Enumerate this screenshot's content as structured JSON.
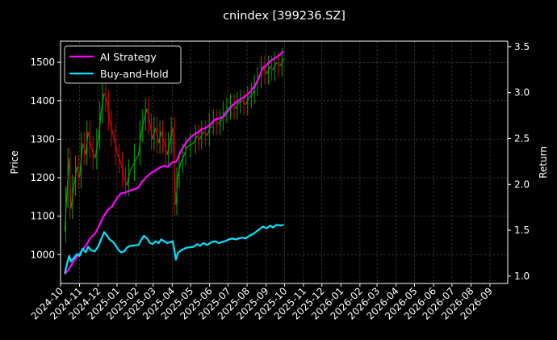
{
  "chart_data": {
    "type": "line",
    "title": "cnindex [399236.SZ]",
    "ylabel_left": "Price",
    "ylabel_right": "Return",
    "x_ticks": [
      "2024-10",
      "2024-11",
      "2024-12",
      "2025-01",
      "2025-02",
      "2025-03",
      "2025-04",
      "2025-05",
      "2025-06",
      "2025-07",
      "2025-08",
      "2025-09",
      "2025-10",
      "2025-11",
      "2025-12",
      "2026-01",
      "2026-02",
      "2026-03",
      "2026-04",
      "2026-05",
      "2026-06",
      "2026-07",
      "2026-08",
      "2026-09"
    ],
    "xlim": [
      "2024-10-01",
      "2026-09-30"
    ],
    "ylim_left": [
      925,
      1555
    ],
    "ylim_right": [
      0.92,
      3.56
    ],
    "y_ticks_left": [
      1000,
      1100,
      1200,
      1300,
      1400,
      1500
    ],
    "y_ticks_right": [
      1.0,
      1.5,
      2.0,
      2.5,
      3.0,
      3.5
    ],
    "grid": true,
    "legend_position": "top-left",
    "colors": {
      "up": "#00a800",
      "down": "#e00000",
      "ai_strategy": "#ff00ff",
      "buy_and_hold": "#00e5ff",
      "background": "#000000",
      "text": "#ffffff",
      "grid": "#4a4a4a"
    },
    "price_series": [
      {
        "date": "2024-10-08",
        "close": 1060
      },
      {
        "date": "2024-10-11",
        "close": 1150
      },
      {
        "date": "2024-10-15",
        "close": 1250
      },
      {
        "date": "2024-10-18",
        "close": 1120
      },
      {
        "date": "2024-10-23",
        "close": 1180
      },
      {
        "date": "2024-10-28",
        "close": 1230
      },
      {
        "date": "2024-11-01",
        "close": 1200
      },
      {
        "date": "2024-11-06",
        "close": 1290
      },
      {
        "date": "2024-11-11",
        "close": 1260
      },
      {
        "date": "2024-11-15",
        "close": 1320
      },
      {
        "date": "2024-11-20",
        "close": 1280
      },
      {
        "date": "2024-11-26",
        "close": 1250
      },
      {
        "date": "2024-12-02",
        "close": 1300
      },
      {
        "date": "2024-12-06",
        "close": 1370
      },
      {
        "date": "2024-12-11",
        "close": 1420
      },
      {
        "date": "2024-12-16",
        "close": 1400
      },
      {
        "date": "2024-12-20",
        "close": 1350
      },
      {
        "date": "2024-12-26",
        "close": 1310
      },
      {
        "date": "2025-01-02",
        "close": 1260
      },
      {
        "date": "2025-01-07",
        "close": 1240
      },
      {
        "date": "2025-01-13",
        "close": 1200
      },
      {
        "date": "2025-01-17",
        "close": 1180
      },
      {
        "date": "2025-01-23",
        "close": 1220
      },
      {
        "date": "2025-02-05",
        "close": 1260
      },
      {
        "date": "2025-02-10",
        "close": 1320
      },
      {
        "date": "2025-02-14",
        "close": 1350
      },
      {
        "date": "2025-02-19",
        "close": 1380
      },
      {
        "date": "2025-02-24",
        "close": 1340
      },
      {
        "date": "2025-02-28",
        "close": 1300
      },
      {
        "date": "2025-03-05",
        "close": 1330
      },
      {
        "date": "2025-03-10",
        "close": 1290
      },
      {
        "date": "2025-03-14",
        "close": 1320
      },
      {
        "date": "2025-03-19",
        "close": 1290
      },
      {
        "date": "2025-03-24",
        "close": 1260
      },
      {
        "date": "2025-03-28",
        "close": 1290
      },
      {
        "date": "2025-04-02",
        "close": 1330
      },
      {
        "date": "2025-04-07",
        "close": 1130
      },
      {
        "date": "2025-04-10",
        "close": 1200
      },
      {
        "date": "2025-04-15",
        "close": 1240
      },
      {
        "date": "2025-04-21",
        "close": 1260
      },
      {
        "date": "2025-04-25",
        "close": 1280
      },
      {
        "date": "2025-05-06",
        "close": 1290
      },
      {
        "date": "2025-05-12",
        "close": 1310
      },
      {
        "date": "2025-05-16",
        "close": 1300
      },
      {
        "date": "2025-05-22",
        "close": 1320
      },
      {
        "date": "2025-05-28",
        "close": 1310
      },
      {
        "date": "2025-06-04",
        "close": 1340
      },
      {
        "date": "2025-06-10",
        "close": 1350
      },
      {
        "date": "2025-06-16",
        "close": 1340
      },
      {
        "date": "2025-06-20",
        "close": 1350
      },
      {
        "date": "2025-06-26",
        "close": 1370
      },
      {
        "date": "2025-07-02",
        "close": 1380
      },
      {
        "date": "2025-07-08",
        "close": 1390
      },
      {
        "date": "2025-07-14",
        "close": 1380
      },
      {
        "date": "2025-07-18",
        "close": 1395
      },
      {
        "date": "2025-07-24",
        "close": 1400
      },
      {
        "date": "2025-07-30",
        "close": 1390
      },
      {
        "date": "2025-08-05",
        "close": 1410
      },
      {
        "date": "2025-08-11",
        "close": 1420
      },
      {
        "date": "2025-08-15",
        "close": 1440
      },
      {
        "date": "2025-08-21",
        "close": 1460
      },
      {
        "date": "2025-08-27",
        "close": 1490
      },
      {
        "date": "2025-09-02",
        "close": 1470
      },
      {
        "date": "2025-09-08",
        "close": 1490
      },
      {
        "date": "2025-09-12",
        "close": 1480
      },
      {
        "date": "2025-09-18",
        "close": 1500
      },
      {
        "date": "2025-09-24",
        "close": 1490
      },
      {
        "date": "2025-09-30",
        "close": 1510
      }
    ],
    "series": [
      {
        "name": "AI Strategy",
        "color": "#ff00ff",
        "points": [
          {
            "date": "2024-10-08",
            "y": 1.02
          },
          {
            "date": "2024-10-15",
            "y": 1.08
          },
          {
            "date": "2024-10-22",
            "y": 1.16
          },
          {
            "date": "2024-10-29",
            "y": 1.22
          },
          {
            "date": "2024-11-05",
            "y": 1.28
          },
          {
            "date": "2024-11-12",
            "y": 1.34
          },
          {
            "date": "2024-11-19",
            "y": 1.42
          },
          {
            "date": "2024-11-26",
            "y": 1.46
          },
          {
            "date": "2024-12-03",
            "y": 1.55
          },
          {
            "date": "2024-12-10",
            "y": 1.65
          },
          {
            "date": "2024-12-17",
            "y": 1.72
          },
          {
            "date": "2024-12-24",
            "y": 1.76
          },
          {
            "date": "2024-12-31",
            "y": 1.84
          },
          {
            "date": "2025-01-07",
            "y": 1.9
          },
          {
            "date": "2025-01-14",
            "y": 1.91
          },
          {
            "date": "2025-01-21",
            "y": 1.93
          },
          {
            "date": "2025-02-04",
            "y": 1.96
          },
          {
            "date": "2025-02-11",
            "y": 2.03
          },
          {
            "date": "2025-02-18",
            "y": 2.08
          },
          {
            "date": "2025-02-25",
            "y": 2.12
          },
          {
            "date": "2025-03-04",
            "y": 2.15
          },
          {
            "date": "2025-03-11",
            "y": 2.18
          },
          {
            "date": "2025-03-18",
            "y": 2.2
          },
          {
            "date": "2025-03-25",
            "y": 2.19
          },
          {
            "date": "2025-04-01",
            "y": 2.24
          },
          {
            "date": "2025-04-08",
            "y": 2.25
          },
          {
            "date": "2025-04-15",
            "y": 2.36
          },
          {
            "date": "2025-04-22",
            "y": 2.44
          },
          {
            "date": "2025-04-29",
            "y": 2.5
          },
          {
            "date": "2025-05-06",
            "y": 2.54
          },
          {
            "date": "2025-05-13",
            "y": 2.57
          },
          {
            "date": "2025-05-20",
            "y": 2.6
          },
          {
            "date": "2025-05-27",
            "y": 2.62
          },
          {
            "date": "2025-06-03",
            "y": 2.66
          },
          {
            "date": "2025-06-10",
            "y": 2.71
          },
          {
            "date": "2025-06-17",
            "y": 2.72
          },
          {
            "date": "2025-06-24",
            "y": 2.74
          },
          {
            "date": "2025-07-01",
            "y": 2.8
          },
          {
            "date": "2025-07-08",
            "y": 2.86
          },
          {
            "date": "2025-07-15",
            "y": 2.9
          },
          {
            "date": "2025-07-22",
            "y": 2.93
          },
          {
            "date": "2025-07-29",
            "y": 2.96
          },
          {
            "date": "2025-08-05",
            "y": 3.0
          },
          {
            "date": "2025-08-12",
            "y": 3.06
          },
          {
            "date": "2025-08-19",
            "y": 3.14
          },
          {
            "date": "2025-08-26",
            "y": 3.26
          },
          {
            "date": "2025-09-02",
            "y": 3.3
          },
          {
            "date": "2025-09-09",
            "y": 3.35
          },
          {
            "date": "2025-09-16",
            "y": 3.38
          },
          {
            "date": "2025-09-23",
            "y": 3.41
          },
          {
            "date": "2025-09-30",
            "y": 3.45
          }
        ]
      },
      {
        "name": "Buy-and-Hold",
        "color": "#00e5ff",
        "points": [
          {
            "date": "2024-10-08",
            "y": 1.03
          },
          {
            "date": "2024-10-11",
            "y": 1.12
          },
          {
            "date": "2024-10-15",
            "y": 1.22
          },
          {
            "date": "2024-10-18",
            "y": 1.16
          },
          {
            "date": "2024-10-23",
            "y": 1.2
          },
          {
            "date": "2024-10-28",
            "y": 1.24
          },
          {
            "date": "2024-11-01",
            "y": 1.22
          },
          {
            "date": "2024-11-06",
            "y": 1.3
          },
          {
            "date": "2024-11-11",
            "y": 1.26
          },
          {
            "date": "2024-11-15",
            "y": 1.32
          },
          {
            "date": "2024-11-20",
            "y": 1.28
          },
          {
            "date": "2024-11-26",
            "y": 1.27
          },
          {
            "date": "2024-12-02",
            "y": 1.33
          },
          {
            "date": "2024-12-06",
            "y": 1.4
          },
          {
            "date": "2024-12-11",
            "y": 1.48
          },
          {
            "date": "2024-12-16",
            "y": 1.44
          },
          {
            "date": "2024-12-20",
            "y": 1.4
          },
          {
            "date": "2024-12-26",
            "y": 1.37
          },
          {
            "date": "2025-01-02",
            "y": 1.3
          },
          {
            "date": "2025-01-07",
            "y": 1.26
          },
          {
            "date": "2025-01-13",
            "y": 1.27
          },
          {
            "date": "2025-01-17",
            "y": 1.31
          },
          {
            "date": "2025-01-23",
            "y": 1.33
          },
          {
            "date": "2025-02-05",
            "y": 1.34
          },
          {
            "date": "2025-02-10",
            "y": 1.4
          },
          {
            "date": "2025-02-14",
            "y": 1.44
          },
          {
            "date": "2025-02-19",
            "y": 1.41
          },
          {
            "date": "2025-02-24",
            "y": 1.36
          },
          {
            "date": "2025-02-28",
            "y": 1.35
          },
          {
            "date": "2025-03-05",
            "y": 1.38
          },
          {
            "date": "2025-03-10",
            "y": 1.36
          },
          {
            "date": "2025-03-14",
            "y": 1.4
          },
          {
            "date": "2025-03-19",
            "y": 1.38
          },
          {
            "date": "2025-03-24",
            "y": 1.36
          },
          {
            "date": "2025-03-28",
            "y": 1.37
          },
          {
            "date": "2025-04-02",
            "y": 1.38
          },
          {
            "date": "2025-04-07",
            "y": 1.18
          },
          {
            "date": "2025-04-10",
            "y": 1.25
          },
          {
            "date": "2025-04-15",
            "y": 1.28
          },
          {
            "date": "2025-04-21",
            "y": 1.3
          },
          {
            "date": "2025-04-25",
            "y": 1.31
          },
          {
            "date": "2025-05-06",
            "y": 1.32
          },
          {
            "date": "2025-05-12",
            "y": 1.35
          },
          {
            "date": "2025-05-16",
            "y": 1.33
          },
          {
            "date": "2025-05-22",
            "y": 1.36
          },
          {
            "date": "2025-05-28",
            "y": 1.34
          },
          {
            "date": "2025-06-04",
            "y": 1.37
          },
          {
            "date": "2025-06-10",
            "y": 1.38
          },
          {
            "date": "2025-06-16",
            "y": 1.36
          },
          {
            "date": "2025-06-20",
            "y": 1.37
          },
          {
            "date": "2025-06-26",
            "y": 1.38
          },
          {
            "date": "2025-07-02",
            "y": 1.4
          },
          {
            "date": "2025-07-08",
            "y": 1.41
          },
          {
            "date": "2025-07-14",
            "y": 1.4
          },
          {
            "date": "2025-07-18",
            "y": 1.41
          },
          {
            "date": "2025-07-24",
            "y": 1.42
          },
          {
            "date": "2025-07-30",
            "y": 1.41
          },
          {
            "date": "2025-08-05",
            "y": 1.44
          },
          {
            "date": "2025-08-11",
            "y": 1.46
          },
          {
            "date": "2025-08-15",
            "y": 1.48
          },
          {
            "date": "2025-08-21",
            "y": 1.51
          },
          {
            "date": "2025-08-27",
            "y": 1.54
          },
          {
            "date": "2025-09-02",
            "y": 1.52
          },
          {
            "date": "2025-09-08",
            "y": 1.55
          },
          {
            "date": "2025-09-12",
            "y": 1.53
          },
          {
            "date": "2025-09-18",
            "y": 1.56
          },
          {
            "date": "2025-09-24",
            "y": 1.55
          },
          {
            "date": "2025-09-30",
            "y": 1.56
          }
        ]
      }
    ]
  }
}
